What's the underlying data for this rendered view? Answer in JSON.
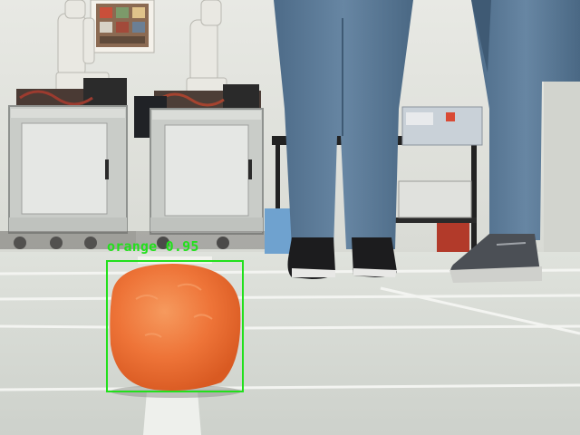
{
  "detection": {
    "label": "orange",
    "score": "0.95",
    "box_color": "#22e01c"
  },
  "colors": {
    "floor": "#d3d7d1",
    "wall": "#e4e6e1",
    "jeans": "#5e7c9a",
    "orange": "#f07436"
  }
}
